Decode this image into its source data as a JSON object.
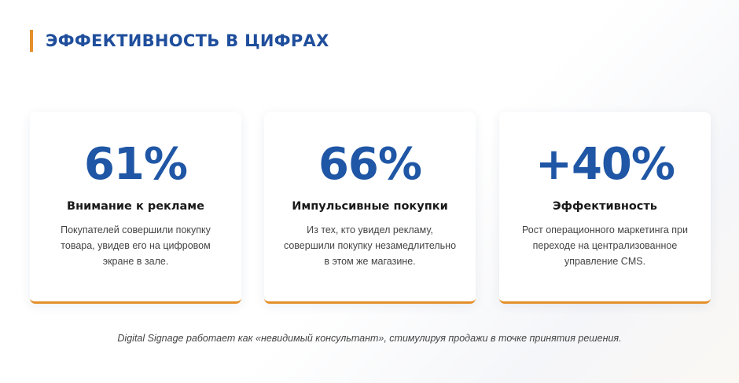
{
  "header": {
    "title": "ЭФФЕКТИВНОСТЬ В ЦИФРАХ"
  },
  "cards": [
    {
      "value": "61%",
      "label": "Внимание к рекламе",
      "description": "Покупателей совершили покупку товара, увидев его на цифровом экране в зале."
    },
    {
      "value": "66%",
      "label": "Импульсивные покупки",
      "description": "Из тех, кто увидел рекламу, совершили покупку незамедлительно в этом же магазине."
    },
    {
      "value": "+40%",
      "label": "Эффективность",
      "description": "Рост операционного маркетинга при переходе на централизованное управление CMS."
    }
  ],
  "footer": {
    "text": "Digital Signage работает как «невидимый консультант», стимулируя продажи в точке принятия решения."
  },
  "colors": {
    "accent": "#e58f2a",
    "primary": "#1f56a5"
  }
}
